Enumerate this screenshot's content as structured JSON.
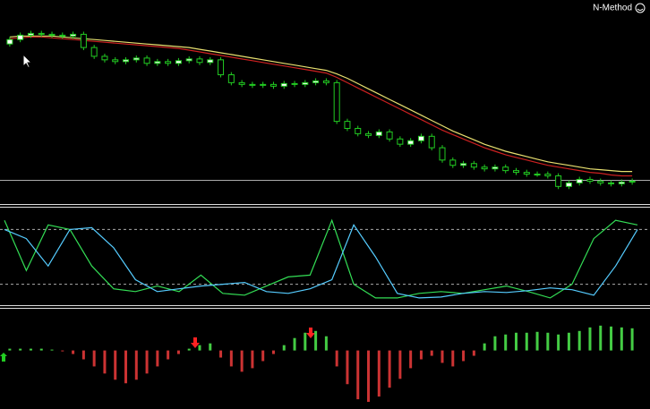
{
  "label": "N-Method",
  "chart_data": [
    {
      "type": "candlestick",
      "ylim": [
        0,
        228
      ],
      "price_line": 25,
      "line_color": "#aaaaaa",
      "candle_color": "#22cc22",
      "open": [
        180,
        185,
        190,
        192,
        191,
        190,
        189,
        191,
        176,
        166,
        162,
        160,
        162,
        164,
        158,
        160,
        158,
        161,
        163,
        159,
        162,
        145,
        136,
        134,
        133,
        134,
        132,
        135,
        134,
        136,
        138,
        136,
        92,
        84,
        78,
        76,
        80,
        72,
        66,
        70,
        75,
        62,
        48,
        42,
        44,
        40,
        38,
        40,
        36,
        34,
        32,
        32,
        30,
        18,
        22,
        26,
        24,
        22,
        21,
        23
      ],
      "high": [
        188,
        193,
        195,
        195,
        194,
        193,
        194,
        194,
        179,
        169,
        165,
        165,
        167,
        167,
        163,
        163,
        164,
        166,
        166,
        165,
        165,
        148,
        139,
        137,
        137,
        137,
        138,
        138,
        139,
        141,
        141,
        139,
        95,
        87,
        81,
        83,
        83,
        75,
        73,
        78,
        78,
        65,
        51,
        47,
        47,
        43,
        43,
        43,
        39,
        37,
        35,
        35,
        33,
        25,
        29,
        29,
        27,
        25,
        26,
        27
      ],
      "low": [
        177,
        182,
        187,
        188,
        187,
        186,
        186,
        173,
        163,
        159,
        157,
        157,
        159,
        155,
        155,
        155,
        155,
        158,
        156,
        156,
        142,
        133,
        131,
        130,
        130,
        129,
        129,
        131,
        131,
        133,
        133,
        89,
        81,
        75,
        73,
        73,
        69,
        63,
        63,
        67,
        59,
        45,
        39,
        39,
        37,
        35,
        35,
        33,
        31,
        29,
        29,
        27,
        15,
        15,
        19,
        21,
        19,
        18,
        18,
        20
      ],
      "close": [
        185,
        190,
        192,
        191,
        190,
        189,
        191,
        176,
        166,
        162,
        160,
        162,
        164,
        158,
        160,
        158,
        161,
        163,
        159,
        162,
        145,
        136,
        134,
        133,
        134,
        132,
        135,
        134,
        136,
        138,
        136,
        92,
        84,
        78,
        76,
        80,
        72,
        66,
        70,
        75,
        62,
        48,
        42,
        44,
        40,
        38,
        40,
        36,
        34,
        32,
        32,
        30,
        18,
        22,
        26,
        24,
        22,
        21,
        23,
        24
      ],
      "series": [
        {
          "color": "#e8e070",
          "values": [
            188,
            189,
            189,
            189,
            189,
            188,
            187,
            186,
            185,
            184,
            183,
            182,
            181,
            180,
            179,
            178,
            177,
            176,
            174,
            172,
            170,
            168,
            166,
            164,
            162,
            160,
            158,
            156,
            154,
            152,
            150,
            146,
            141,
            135,
            129,
            123,
            117,
            111,
            105,
            99,
            93,
            87,
            81,
            76,
            71,
            66,
            62,
            58,
            55,
            52,
            49,
            46,
            44,
            42,
            40,
            38,
            37,
            36,
            35,
            35
          ]
        },
        {
          "color": "#cc2020",
          "values": [
            186,
            187,
            188,
            188,
            187,
            186,
            185,
            184,
            183,
            182,
            181,
            180,
            179,
            178,
            177,
            176,
            175,
            173,
            171,
            169,
            167,
            165,
            163,
            161,
            159,
            157,
            155,
            153,
            151,
            149,
            147,
            142,
            136,
            130,
            124,
            118,
            112,
            106,
            100,
            94,
            88,
            82,
            77,
            72,
            67,
            62,
            58,
            54,
            51,
            48,
            45,
            42,
            40,
            38,
            36,
            34,
            33,
            31,
            30,
            30
          ]
        }
      ]
    },
    {
      "type": "line",
      "ylim": [
        0,
        100
      ],
      "levels": [
        80,
        20
      ],
      "series": [
        {
          "color": "#33dd55",
          "values": [
            90,
            35,
            85,
            80,
            40,
            15,
            12,
            18,
            12,
            30,
            10,
            8,
            18,
            28,
            30,
            90,
            20,
            5,
            5,
            10,
            12,
            10,
            14,
            18,
            12,
            5,
            20,
            70,
            90,
            85
          ]
        },
        {
          "color": "#55ccff",
          "values": [
            80,
            70,
            40,
            80,
            82,
            60,
            25,
            12,
            15,
            18,
            20,
            22,
            12,
            10,
            15,
            25,
            85,
            50,
            10,
            5,
            6,
            10,
            12,
            11,
            13,
            16,
            14,
            8,
            40,
            80
          ]
        }
      ]
    },
    {
      "type": "bar",
      "ylim": [
        -65,
        45
      ],
      "up_color": "#44cc44",
      "down_color": "#cc3333",
      "values": [
        2,
        2,
        2,
        2,
        1,
        -1,
        -4,
        -10,
        -18,
        -26,
        -33,
        -37,
        -33,
        -26,
        -18,
        -10,
        -4,
        2,
        6,
        8,
        -8,
        -18,
        -24,
        -20,
        -12,
        -4,
        6,
        14,
        20,
        22,
        16,
        -18,
        -38,
        -55,
        -58,
        -52,
        -42,
        -32,
        -20,
        -10,
        -6,
        -14,
        -18,
        -12,
        -6,
        8,
        16,
        18,
        20,
        20,
        21,
        20,
        18,
        20,
        22,
        26,
        28,
        27,
        26,
        25
      ]
    }
  ]
}
